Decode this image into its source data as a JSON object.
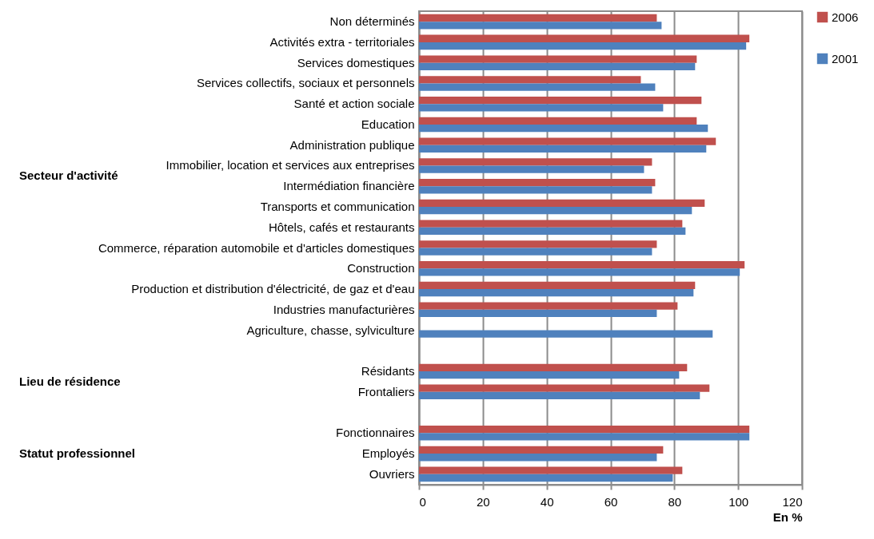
{
  "chart_data": {
    "type": "bar",
    "orientation": "horizontal",
    "xlabel": "En %",
    "categories": [
      "Non déterminés",
      "Activités extra - territoriales",
      "Services domestiques",
      "Services collectifs, sociaux et personnels",
      "Santé et action sociale",
      "Education ",
      "Administration publique",
      "Immobilier, location et services aux entreprises",
      "Intermédiation financière",
      "Transports et communication",
      "Hôtels, cafés et restaurants",
      "Commerce, réparation automobile et d'articles domestiques",
      "Construction ",
      "Production et distribution d'électricité, de gaz et d'eau",
      "Industries manufacturières",
      "Agriculture, chasse, sylviculture",
      null,
      "Résidants ",
      "Frontaliers",
      null,
      "Fonctionnaires",
      "Employés",
      "Ouvriers"
    ],
    "series": [
      {
        "name": "2006",
        "color": "#c0504d",
        "values": [
          74.5,
          103.5,
          87,
          69.5,
          88.5,
          87,
          93,
          73,
          74,
          89.5,
          82.5,
          74.5,
          102,
          86.5,
          81,
          null,
          null,
          84,
          91,
          null,
          103.5,
          76.5,
          82.5
        ]
      },
      {
        "name": "2001",
        "color": "#4f81bd",
        "values": [
          76,
          102.5,
          86.5,
          74,
          76.5,
          90.5,
          90,
          70.5,
          73,
          85.5,
          83.5,
          73,
          100.5,
          86,
          74.5,
          92,
          null,
          81.5,
          88,
          null,
          103.5,
          74.5,
          79.5
        ]
      }
    ],
    "xlim": [
      0,
      120
    ],
    "xticks": [
      0,
      20,
      40,
      60,
      80,
      100,
      120
    ],
    "grid": "x",
    "legend": "right",
    "annotations": [
      "Secteur d'activité",
      "Lieu de résidence",
      "Statut professionnel"
    ]
  }
}
